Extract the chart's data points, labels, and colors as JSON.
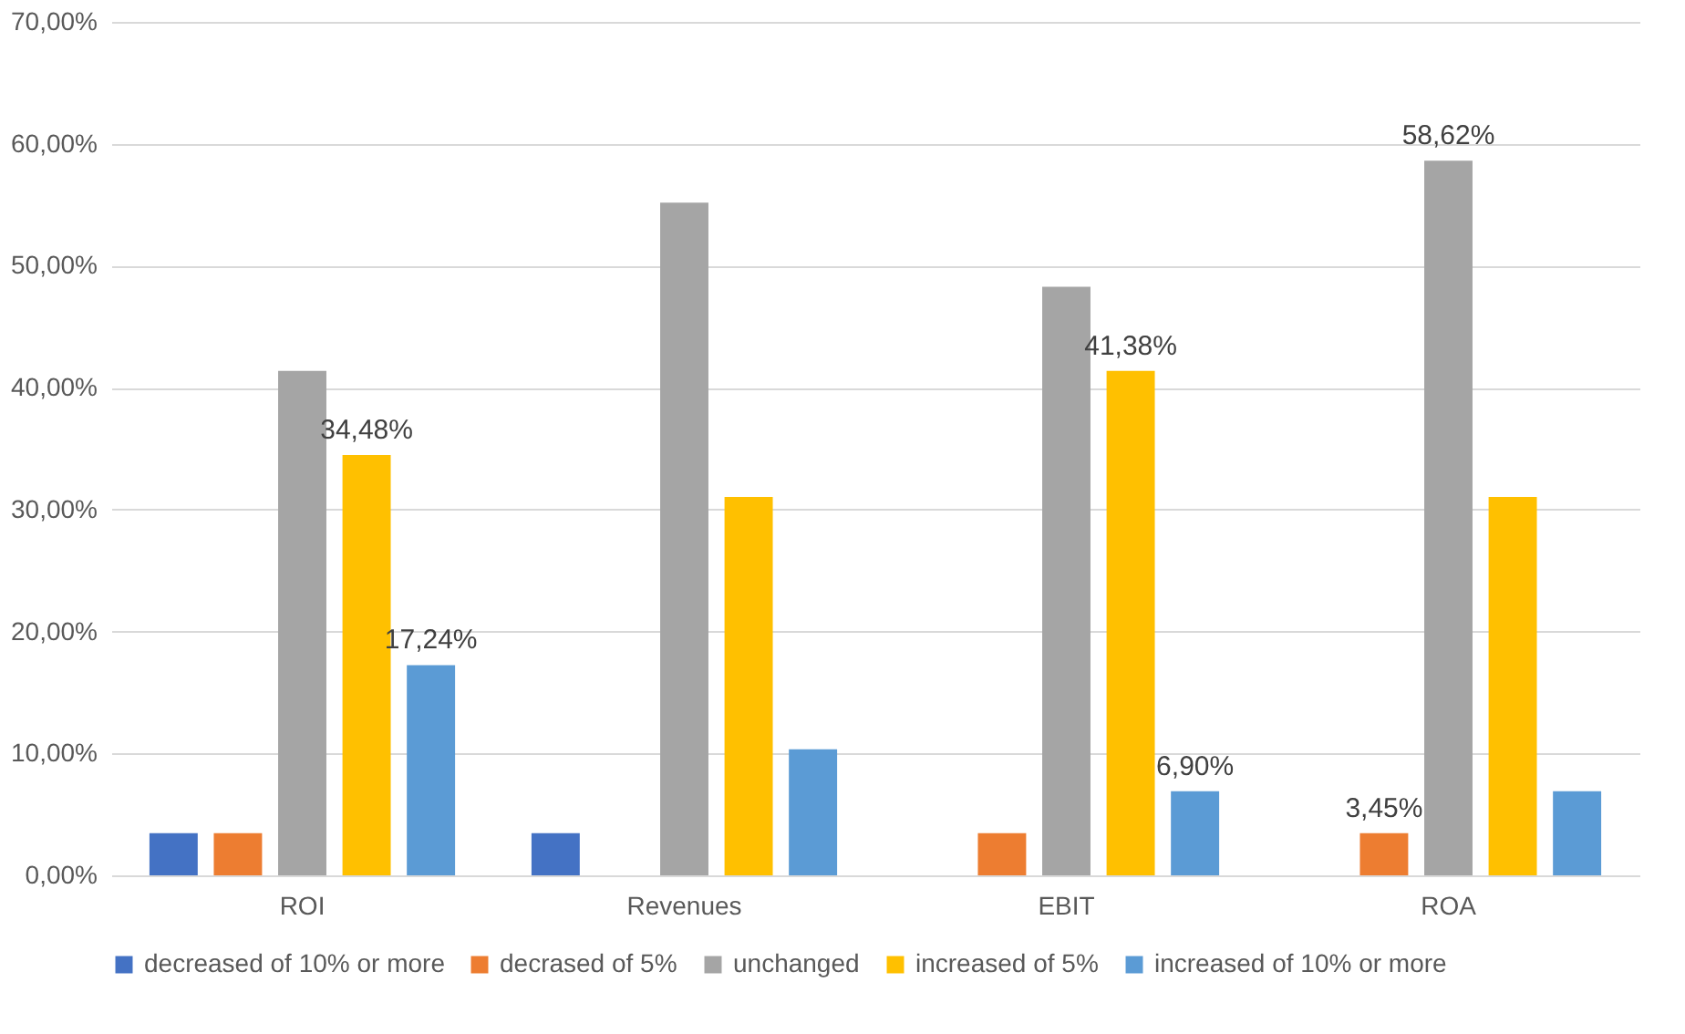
{
  "chart_data": {
    "type": "bar",
    "categories": [
      "ROI",
      "Revenues",
      "EBIT",
      "ROA"
    ],
    "series": [
      {
        "name": "decreased of 10% or more",
        "color": "#4472c4",
        "values": [
          3.45,
          3.45,
          0,
          0
        ],
        "value_labels": [
          null,
          null,
          null,
          null
        ]
      },
      {
        "name": "decrased of 5%",
        "color": "#ed7d31",
        "values": [
          3.45,
          0,
          3.45,
          3.45
        ],
        "value_labels": [
          null,
          null,
          null,
          "3,45%"
        ]
      },
      {
        "name": "unchanged",
        "color": "#a5a5a5",
        "values": [
          41.38,
          55.17,
          48.28,
          58.62
        ],
        "value_labels": [
          null,
          null,
          null,
          "58,62%"
        ]
      },
      {
        "name": "increased of 5%",
        "color": "#ffc000",
        "values": [
          34.48,
          31.03,
          41.38,
          31.03
        ],
        "value_labels": [
          "34,48%",
          null,
          "41,38%",
          null
        ]
      },
      {
        "name": "increased of 10% or more",
        "color": "#5b9bd5",
        "values": [
          17.24,
          10.34,
          6.9,
          6.9
        ],
        "value_labels": [
          "17,24%",
          null,
          "6,90%",
          null
        ]
      }
    ],
    "ylim": [
      0,
      70
    ],
    "yticks": [
      {
        "value": 0,
        "label": "0,00%"
      },
      {
        "value": 10,
        "label": "10,00%"
      },
      {
        "value": 20,
        "label": "20,00%"
      },
      {
        "value": 30,
        "label": "30,00%"
      },
      {
        "value": 40,
        "label": "40,00%"
      },
      {
        "value": 50,
        "label": "50,00%"
      },
      {
        "value": 60,
        "label": "60,00%"
      },
      {
        "value": 70,
        "label": "70,00%"
      }
    ],
    "grid": "y",
    "legend": "bottom"
  }
}
